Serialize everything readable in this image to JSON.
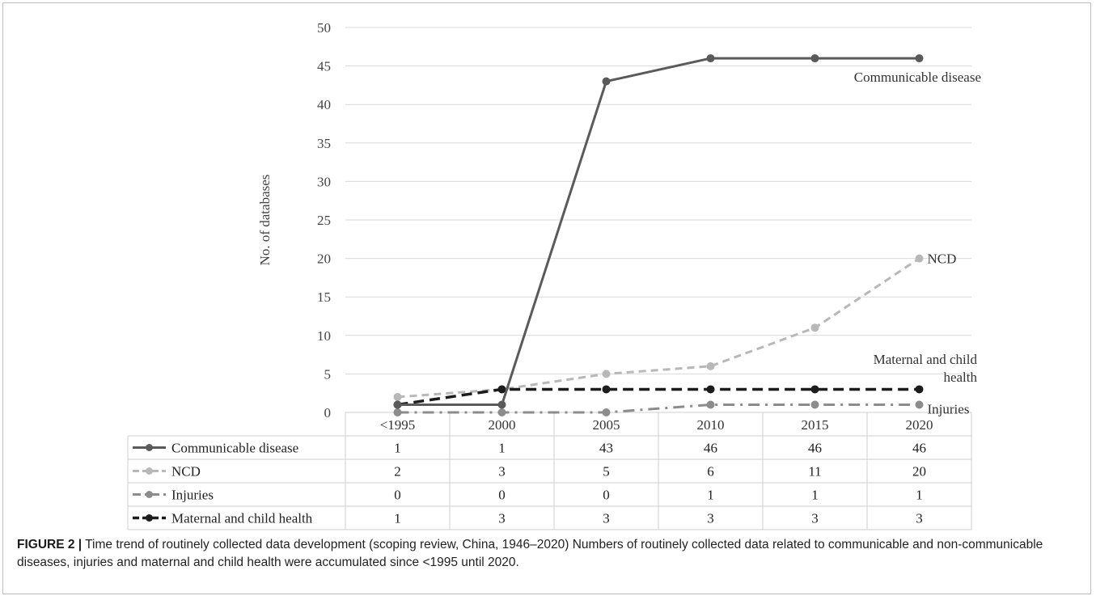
{
  "chart_data": {
    "type": "line",
    "ylabel": "No. of databases",
    "ylim": [
      0,
      50
    ],
    "yticks": [
      "0",
      "5",
      "10",
      "15",
      "20",
      "25",
      "30",
      "35",
      "40",
      "45",
      "50"
    ],
    "categories": [
      "<1995",
      "2000",
      "2005",
      "2010",
      "2015",
      "2020"
    ],
    "grid": true,
    "data_table": true,
    "series": [
      {
        "name": "Communicable disease",
        "values": [
          1,
          1,
          43,
          46,
          46,
          46
        ],
        "color": "#5a5a5a",
        "style": "solid",
        "end_label": "Communicable disease"
      },
      {
        "name": "NCD",
        "values": [
          2,
          3,
          5,
          6,
          11,
          20
        ],
        "color": "#b8b8b8",
        "style": "dash",
        "end_label": "NCD"
      },
      {
        "name": "Injuries",
        "values": [
          0,
          0,
          0,
          1,
          1,
          1
        ],
        "color": "#8c8c8c",
        "style": "dashdot",
        "end_label": "Injuries"
      },
      {
        "name": "Maternal and child health",
        "values": [
          1,
          3,
          3,
          3,
          3,
          3
        ],
        "color": "#1c1c1c",
        "style": "longdash",
        "end_label_lines": [
          "Maternal and child",
          "health"
        ]
      }
    ]
  },
  "caption": {
    "lead": "FIGURE 2 |",
    "text": " Time trend of routinely collected data development (scoping review, China, 1946–2020) Numbers of routinely collected data related to communicable and non-communicable diseases, injuries and maternal and child health were accumulated since <1995 until 2020."
  }
}
